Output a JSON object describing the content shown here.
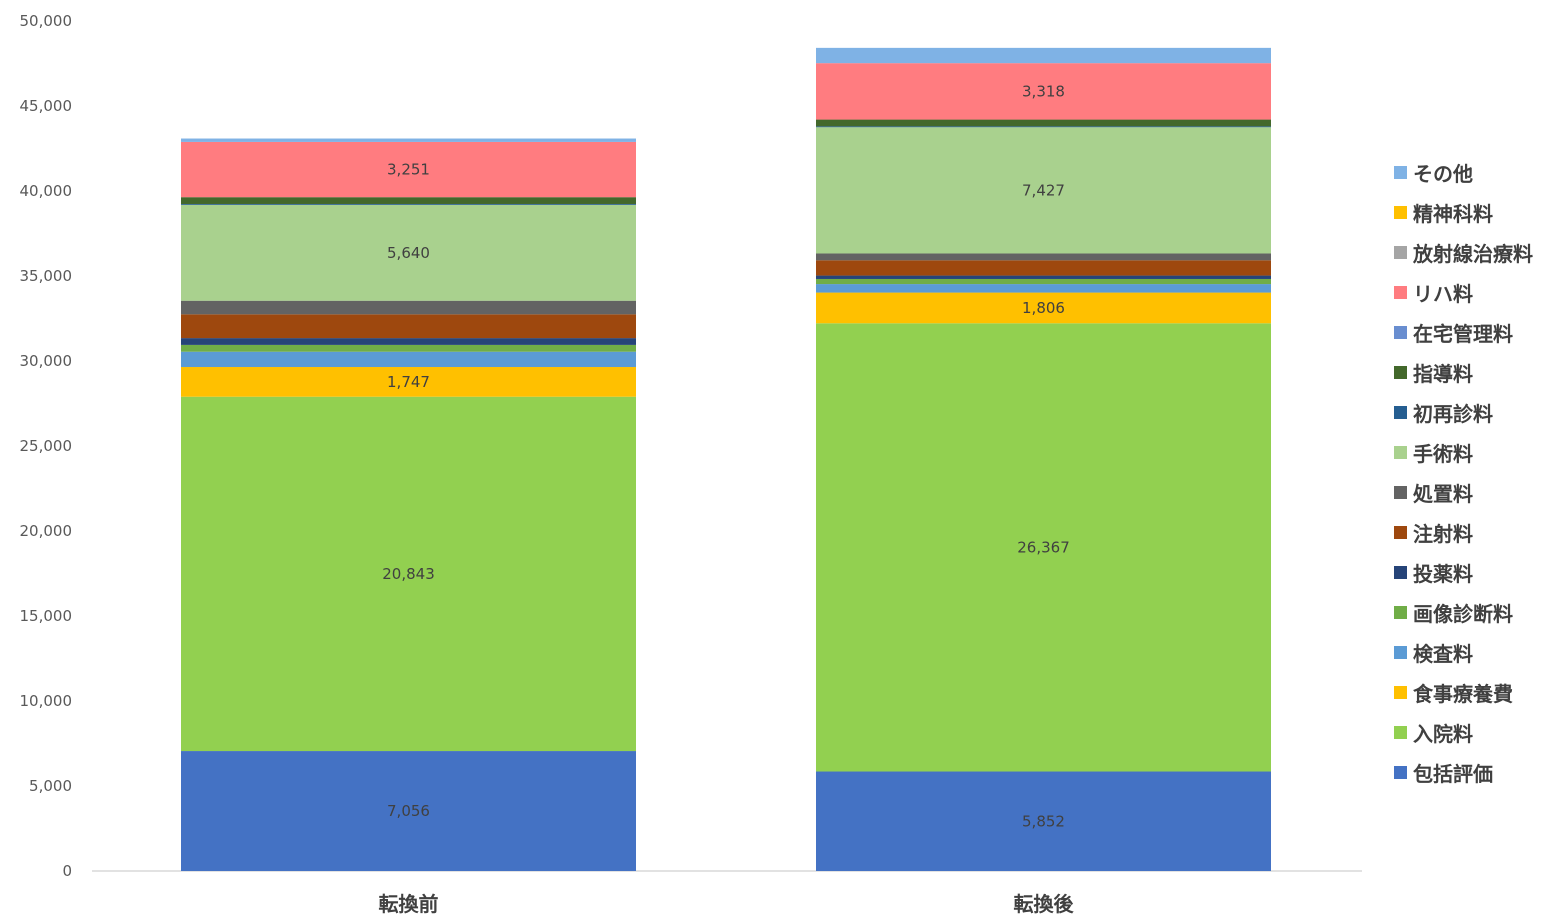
{
  "chart_data": {
    "type": "bar",
    "stacked": true,
    "categories": [
      "転換前",
      "転換後"
    ],
    "ylim": [
      0,
      50000
    ],
    "yticks": [
      "0",
      "5,000",
      "10,000",
      "15,000",
      "20,000",
      "25,000",
      "30,000",
      "35,000",
      "40,000",
      "45,000",
      "50,000"
    ],
    "legend_position": "right",
    "series": [
      {
        "name": "包括評価",
        "color": "#4472C4",
        "values": [
          7056,
          5852
        ],
        "labels": [
          "7,056",
          "5,852"
        ]
      },
      {
        "name": "入院料",
        "color": "#92D050",
        "values": [
          20843,
          26367
        ],
        "labels": [
          "20,843",
          "26,367"
        ]
      },
      {
        "name": "食事療養費",
        "color": "#FFC000",
        "values": [
          1747,
          1806
        ],
        "labels": [
          "1,747",
          "1,806"
        ]
      },
      {
        "name": "検査料",
        "color": "#5B9BD5",
        "values": [
          900,
          500
        ],
        "labels": [
          "",
          ""
        ]
      },
      {
        "name": "画像診断料",
        "color": "#70AD47",
        "values": [
          400,
          300
        ],
        "labels": [
          "",
          ""
        ]
      },
      {
        "name": "投薬料",
        "color": "#264478",
        "values": [
          400,
          200
        ],
        "labels": [
          "",
          ""
        ]
      },
      {
        "name": "注射料",
        "color": "#9E480E",
        "values": [
          1400,
          900
        ],
        "labels": [
          "",
          ""
        ]
      },
      {
        "name": "処置料",
        "color": "#636363",
        "values": [
          800,
          400
        ],
        "labels": [
          "",
          ""
        ]
      },
      {
        "name": "手術料",
        "color": "#A9D18E",
        "values": [
          5640,
          7427
        ],
        "labels": [
          "5,640",
          "7,427"
        ]
      },
      {
        "name": "初再診料",
        "color": "#255E91",
        "values": [
          50,
          50
        ],
        "labels": [
          "",
          ""
        ]
      },
      {
        "name": "指導料",
        "color": "#43682B",
        "values": [
          400,
          400
        ],
        "labels": [
          "",
          ""
        ]
      },
      {
        "name": "在宅管理料",
        "color": "#698ED0",
        "values": [
          0,
          0
        ],
        "labels": [
          "",
          ""
        ]
      },
      {
        "name": "リハ料",
        "color": "#FF7C80",
        "values": [
          3251,
          3318
        ],
        "labels": [
          "3,251",
          "3,318"
        ]
      },
      {
        "name": "放射線治療料",
        "color": "#A5A5A5",
        "values": [
          0,
          0
        ],
        "labels": [
          "",
          ""
        ]
      },
      {
        "name": "精神科料",
        "color": "#FFC000",
        "values": [
          0,
          0
        ],
        "labels": [
          "",
          ""
        ]
      },
      {
        "name": "その他",
        "color": "#7FB2E5",
        "values": [
          200,
          900
        ],
        "labels": [
          "",
          ""
        ]
      }
    ],
    "legend": [
      "その他",
      "精神科料",
      "放射線治療料",
      "リハ料",
      "在宅管理料",
      "指導料",
      "初再診料",
      "手術料",
      "処置料",
      "注射料",
      "投薬料",
      "画像診断料",
      "検査料",
      "食事療養費",
      "入院料",
      "包括評価"
    ]
  }
}
